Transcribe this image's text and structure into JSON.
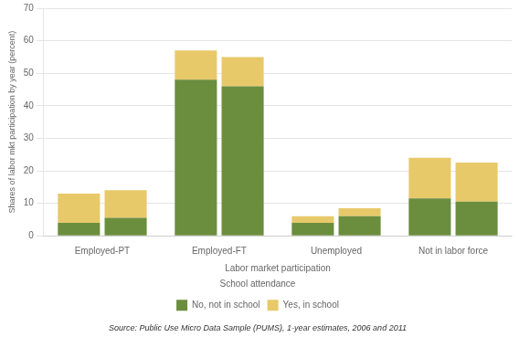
{
  "chart_data": {
    "type": "bar",
    "stacked": true,
    "categories": [
      "Employed-PT",
      "Employed-FT",
      "Unemployed",
      "Not in labor force"
    ],
    "groups": [
      {
        "series": [
          {
            "name": "No, not in school",
            "color": "#6b8e3e",
            "values": [
              4.0,
              48.0,
              4.0,
              11.5
            ]
          },
          {
            "name": "Yes, in school",
            "color": "#e8c96a",
            "values": [
              9.0,
              9.0,
              2.0,
              12.5
            ]
          }
        ]
      },
      {
        "series": [
          {
            "name": "No, not in school",
            "color": "#6b8e3e",
            "values": [
              5.5,
              46.0,
              6.0,
              10.5
            ]
          },
          {
            "name": "Yes, in school",
            "color": "#e8c96a",
            "values": [
              8.5,
              9.0,
              2.5,
              12.0
            ]
          }
        ]
      }
    ],
    "xlabel": "Labor market participation",
    "ylabel": "Shares of labor mkt participation by year (percent)",
    "ylim": [
      0,
      70
    ],
    "yticks": [
      0,
      10,
      20,
      30,
      40,
      50,
      60,
      70
    ],
    "grid": true,
    "legend": "bottom",
    "legend_title": "School attendance",
    "annotations": [
      "Source: Public Use Micro Data Sample (PUMS), 1-year estimates, 2006 and 2011"
    ]
  }
}
